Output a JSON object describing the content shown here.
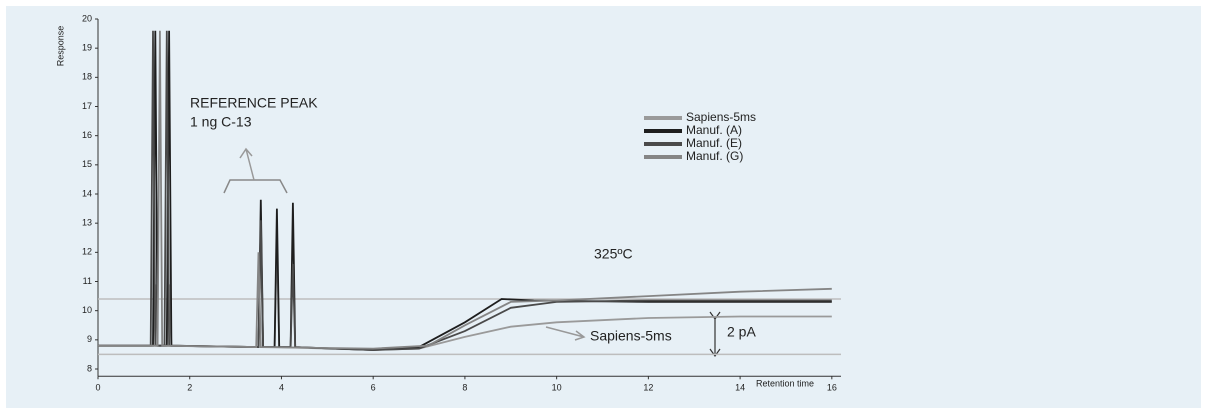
{
  "chart_data": {
    "type": "line",
    "y_label": "Response",
    "x_label": "Retention time",
    "xlim": [
      0,
      16.2
    ],
    "ylim": [
      7.75,
      20
    ],
    "xticks": [
      0,
      2,
      4,
      6,
      8,
      10,
      12,
      14,
      16
    ],
    "yticks": [
      8,
      9,
      10,
      11,
      12,
      13,
      14,
      15,
      16,
      17,
      18,
      19,
      20
    ],
    "hlines": [
      10.4,
      8.5
    ],
    "annotations": [
      "REFERENCE PEAK",
      "1 ng C-13",
      "325ºC",
      "Sapiens-5ms",
      "2 pA"
    ],
    "series": [
      {
        "name": "Sapiens-5ms",
        "color": "#9a9a9a",
        "x": [
          0,
          1.2,
          1.25,
          1.3,
          1.5,
          1.55,
          1.6,
          3.5,
          3.55,
          3.6,
          3.85,
          3.9,
          3.95,
          6,
          7,
          8,
          9,
          10,
          12,
          14,
          16
        ],
        "values": [
          8.8,
          8.8,
          10.9,
          8.8,
          8.8,
          10.9,
          8.8,
          8.75,
          12.1,
          8.75,
          8.75,
          12.4,
          8.75,
          8.65,
          8.7,
          9.1,
          9.45,
          9.6,
          9.75,
          9.8,
          9.8
        ]
      },
      {
        "name": "Manuf. (A)",
        "color": "#1e1e1e",
        "x": [
          0,
          1.2,
          1.25,
          1.3,
          1.5,
          1.55,
          1.6,
          3.5,
          3.55,
          3.6,
          3.85,
          3.9,
          3.95,
          4.2,
          4.25,
          4.3,
          6,
          7,
          8,
          8.8,
          9.5,
          12,
          16
        ],
        "values": [
          8.8,
          8.8,
          19.6,
          8.8,
          8.8,
          19.6,
          8.8,
          8.75,
          13.8,
          8.75,
          8.75,
          13.5,
          8.75,
          8.75,
          13.7,
          8.75,
          8.65,
          8.75,
          9.6,
          10.4,
          10.35,
          10.3,
          10.3
        ]
      },
      {
        "name": "Manuf. (E)",
        "color": "#4a4a4a",
        "x": [
          0,
          1.15,
          1.2,
          1.25,
          1.45,
          1.5,
          1.55,
          3.5,
          3.55,
          3.6,
          4.2,
          4.25,
          4.3,
          6,
          7,
          8,
          9,
          10,
          12,
          16
        ],
        "values": [
          8.8,
          8.8,
          19.6,
          8.8,
          8.8,
          19.6,
          8.8,
          8.75,
          13.1,
          8.75,
          8.75,
          11.6,
          8.75,
          8.65,
          8.7,
          9.3,
          10.1,
          10.3,
          10.35,
          10.35
        ]
      },
      {
        "name": "Manuf. (G)",
        "color": "#858585",
        "x": [
          0,
          1.3,
          1.35,
          1.4,
          3.45,
          3.5,
          3.55,
          6,
          7.2,
          8,
          9,
          10,
          12,
          14,
          16
        ],
        "values": [
          8.8,
          8.8,
          19.6,
          8.8,
          8.75,
          12.0,
          8.75,
          8.7,
          8.8,
          9.5,
          10.3,
          10.35,
          10.5,
          10.65,
          10.75
        ]
      }
    ]
  }
}
